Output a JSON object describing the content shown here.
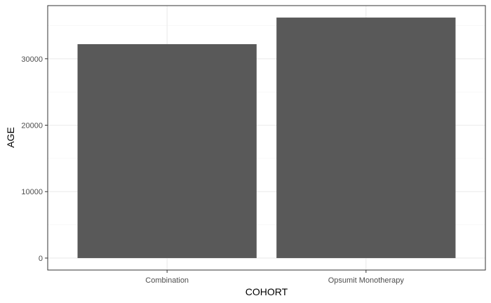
{
  "chart_data": {
    "type": "bar",
    "title": "",
    "xlabel": "COHORT",
    "ylabel": "AGE",
    "categories": [
      "Combination",
      "Opsumit Monotherapy"
    ],
    "values": [
      32200,
      36200
    ],
    "ylim": [
      -1800,
      38000
    ],
    "yticks": [
      0,
      10000,
      20000,
      30000
    ],
    "ytick_labels": [
      "0",
      "10000",
      "20000",
      "30000"
    ],
    "grid": true,
    "legend": "none",
    "colors": {
      "bar": "#595959",
      "panel_border": "#333333",
      "grid_major": "#ebebeb",
      "grid_minor": "#f5f5f5",
      "tick": "#333333"
    }
  }
}
